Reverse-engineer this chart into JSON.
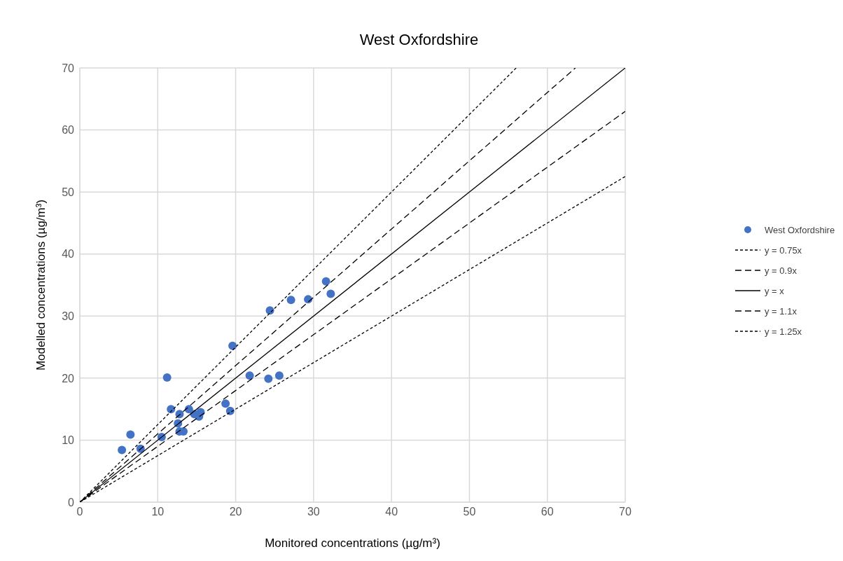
{
  "chart_data": {
    "type": "scatter",
    "title": "West Oxfordshire",
    "xlabel": "Monitored concentrations (µg/m³)",
    "ylabel": "Modelled concentrations (µg/m³)",
    "xlim": [
      0,
      70
    ],
    "xticks": [
      0,
      10,
      20,
      30,
      40,
      50,
      60,
      70
    ],
    "ylim": [
      0,
      70
    ],
    "yticks": [
      0,
      10,
      20,
      30,
      40,
      50,
      60,
      70
    ],
    "grid": true,
    "legend": "right",
    "series": [
      {
        "name": "West Oxfordshire",
        "color": "#4472c4",
        "marker": "circle",
        "x": [
          5.4,
          6.5,
          7.8,
          10.5,
          11.2,
          11.7,
          12.8,
          14.0,
          12.6,
          12.8,
          13.3,
          14.7,
          15.3,
          15.5,
          18.7,
          19.3,
          19.6,
          24.4,
          27.1,
          29.3,
          31.6,
          32.2,
          21.8,
          24.2,
          25.6
        ],
        "values": [
          8.4,
          10.9,
          8.6,
          10.5,
          20.1,
          15.0,
          14.2,
          15.0,
          12.7,
          11.4,
          11.4,
          14.2,
          13.8,
          14.5,
          15.9,
          14.7,
          25.2,
          30.9,
          32.6,
          32.7,
          35.6,
          33.6,
          20.4,
          19.9,
          20.4
        ]
      },
      {
        "name": "y = 0.75x",
        "type": "line",
        "color": "#000000",
        "line_style": "dotted",
        "marker": "none",
        "x": [
          0,
          70
        ],
        "values": [
          0,
          52.5
        ]
      },
      {
        "name": "y = 0.9x",
        "type": "line",
        "color": "#000000",
        "line_style": "dashed",
        "marker": "none",
        "x": [
          0,
          70
        ],
        "values": [
          0,
          63
        ]
      },
      {
        "name": "y = x",
        "type": "line",
        "color": "#000000",
        "line_style": "solid",
        "marker": "none",
        "x": [
          0,
          70
        ],
        "values": [
          0,
          70
        ]
      },
      {
        "name": "y = 1.1x",
        "type": "line",
        "color": "#000000",
        "line_style": "dashed",
        "marker": "none",
        "x": [
          0,
          63.6
        ],
        "values": [
          0,
          70
        ]
      },
      {
        "name": "y = 1.25x",
        "type": "line",
        "color": "#000000",
        "line_style": "dotted",
        "marker": "none",
        "x": [
          0,
          56
        ],
        "values": [
          0,
          70
        ]
      }
    ]
  }
}
